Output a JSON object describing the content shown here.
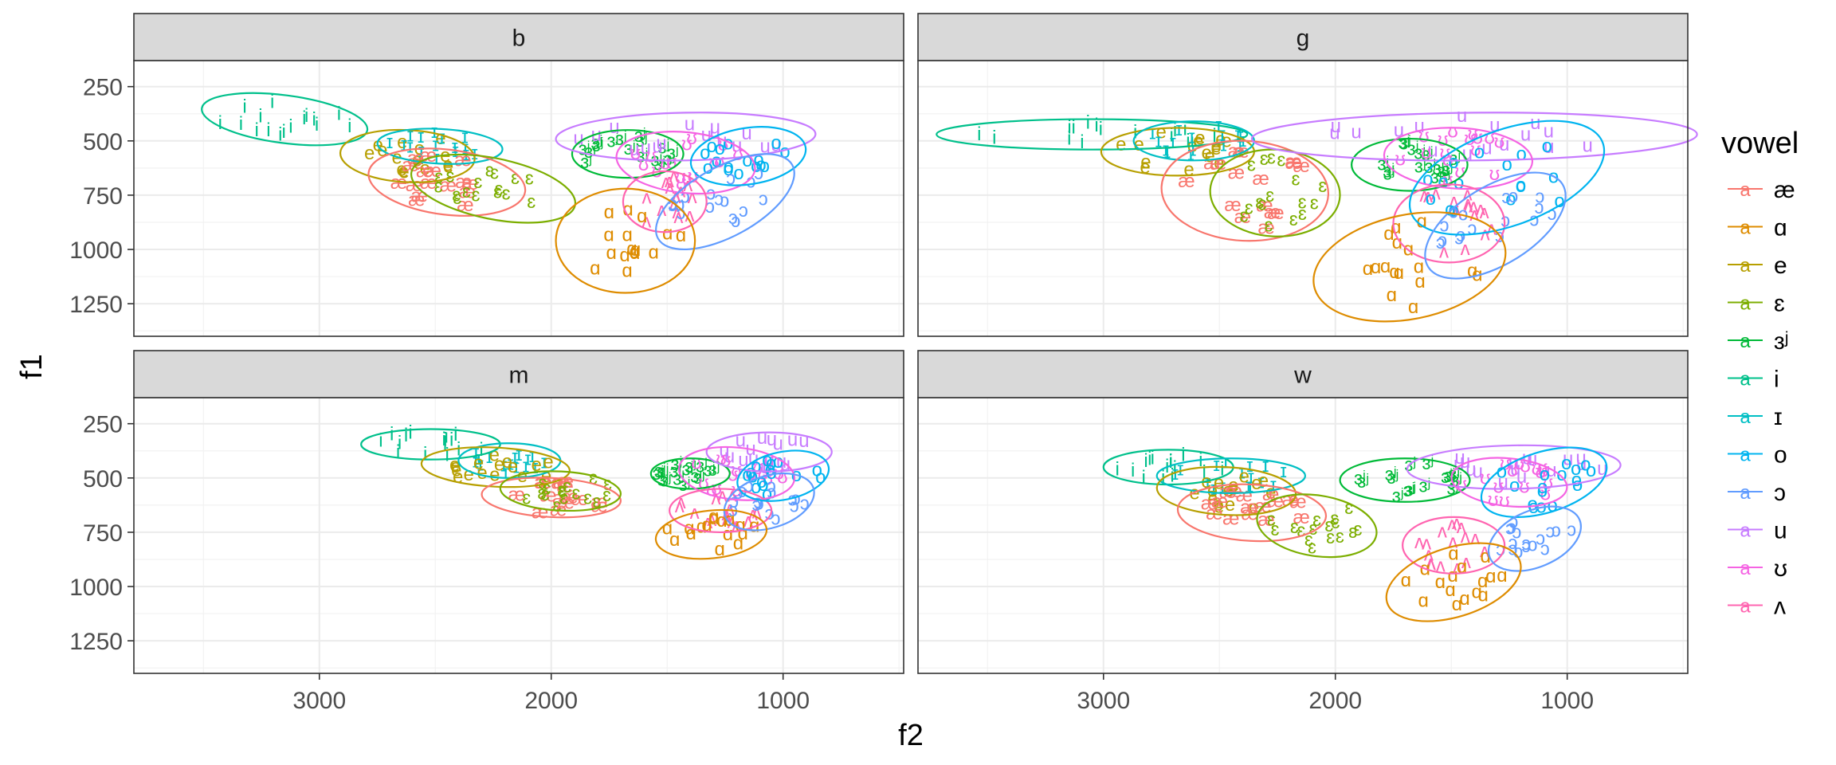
{
  "chart_data": {
    "type": "scatter",
    "xlabel": "f2",
    "ylabel": "f1",
    "x_axis": {
      "reversed": true,
      "lim": [
        3800,
        480
      ],
      "ticks": [
        3000,
        2000,
        1000
      ],
      "tick_labels": [
        "3000",
        "2000",
        "1000"
      ]
    },
    "y_axis": {
      "reversed": true,
      "lim": [
        130,
        1400
      ],
      "ticks": [
        250,
        500,
        750,
        1000,
        1250
      ],
      "tick_labels": [
        "250",
        "500",
        "750",
        "1000",
        "1250"
      ]
    },
    "grid": true,
    "legend": {
      "title": "vowel",
      "position": "right",
      "key_glyph": "a"
    },
    "vowels": [
      {
        "symbol": "æ",
        "color": "#F8766D"
      },
      {
        "symbol": "ɑ",
        "color": "#DE8C00"
      },
      {
        "symbol": "e",
        "color": "#B79F00"
      },
      {
        "symbol": "ɛ",
        "color": "#7CAE00"
      },
      {
        "symbol": "ɜʲ",
        "color": "#00BA38"
      },
      {
        "symbol": "i",
        "color": "#00C08B"
      },
      {
        "symbol": "ɪ",
        "color": "#00BFC4"
      },
      {
        "symbol": "o",
        "color": "#00B4F0"
      },
      {
        "symbol": "ɔ",
        "color": "#619CFF"
      },
      {
        "symbol": "u",
        "color": "#C77CFF"
      },
      {
        "symbol": "ʊ",
        "color": "#F564E3"
      },
      {
        "symbol": "ʌ",
        "color": "#FF64B0"
      }
    ],
    "facets": [
      {
        "label": "b",
        "ellipses": [
          {
            "vowel": "i",
            "cx": 3150,
            "cy": 400,
            "rx": 360,
            "ry": 110,
            "tilt": 0.13
          },
          {
            "vowel": "e",
            "cx": 2620,
            "cy": 570,
            "rx": 290,
            "ry": 120,
            "tilt": 0.05
          },
          {
            "vowel": "ɪ",
            "cx": 2480,
            "cy": 525,
            "rx": 270,
            "ry": 80,
            "tilt": 0.05
          },
          {
            "vowel": "æ",
            "cx": 2450,
            "cy": 690,
            "rx": 340,
            "ry": 150,
            "tilt": 0.12
          },
          {
            "vowel": "ɛ",
            "cx": 2250,
            "cy": 720,
            "rx": 360,
            "ry": 140,
            "tilt": 0.2
          },
          {
            "vowel": "ɜʲ",
            "cx": 1670,
            "cy": 560,
            "rx": 240,
            "ry": 110,
            "tilt": 0.0
          },
          {
            "vowel": "u",
            "cx": 1420,
            "cy": 480,
            "rx": 560,
            "ry": 110,
            "tilt": -0.02
          },
          {
            "vowel": "ʊ",
            "cx": 1420,
            "cy": 600,
            "rx": 300,
            "ry": 140,
            "tilt": 0.1
          },
          {
            "vowel": "ʌ",
            "cx": 1510,
            "cy": 780,
            "rx": 180,
            "ry": 140,
            "tilt": 0.0
          },
          {
            "vowel": "o",
            "cx": 1150,
            "cy": 570,
            "rx": 250,
            "ry": 130,
            "tilt": -0.15
          },
          {
            "vowel": "ɔ",
            "cx": 1250,
            "cy": 780,
            "rx": 330,
            "ry": 160,
            "tilt": -0.5
          },
          {
            "vowel": "ɑ",
            "cx": 1680,
            "cy": 960,
            "rx": 300,
            "ry": 240,
            "tilt": 0.0
          }
        ]
      },
      {
        "label": "g",
        "ellipses": [
          {
            "vowel": "i",
            "cx": 3050,
            "cy": 470,
            "rx": 670,
            "ry": 70,
            "tilt": 0.0
          },
          {
            "vowel": "e",
            "cx": 2680,
            "cy": 550,
            "rx": 330,
            "ry": 110,
            "tilt": 0.0
          },
          {
            "vowel": "ɪ",
            "cx": 2610,
            "cy": 500,
            "rx": 260,
            "ry": 90,
            "tilt": 0.0
          },
          {
            "vowel": "æ",
            "cx": 2390,
            "cy": 730,
            "rx": 360,
            "ry": 230,
            "tilt": 0.05
          },
          {
            "vowel": "ɛ",
            "cx": 2260,
            "cy": 740,
            "rx": 280,
            "ry": 200,
            "tilt": 0.05
          },
          {
            "vowel": "ɜʲ",
            "cx": 1680,
            "cy": 610,
            "rx": 250,
            "ry": 120,
            "tilt": 0.0
          },
          {
            "vowel": "u",
            "cx": 1400,
            "cy": 480,
            "rx": 960,
            "ry": 110,
            "tilt": -0.01
          },
          {
            "vowel": "ʊ",
            "cx": 1470,
            "cy": 580,
            "rx": 320,
            "ry": 140,
            "tilt": 0.05
          },
          {
            "vowel": "ʌ",
            "cx": 1510,
            "cy": 880,
            "rx": 240,
            "ry": 180,
            "tilt": 0.0
          },
          {
            "vowel": "o",
            "cx": 1260,
            "cy": 670,
            "rx": 440,
            "ry": 220,
            "tilt": -0.35
          },
          {
            "vowel": "ɔ",
            "cx": 1310,
            "cy": 890,
            "rx": 340,
            "ry": 180,
            "tilt": -0.55
          },
          {
            "vowel": "ɑ",
            "cx": 1680,
            "cy": 1080,
            "rx": 420,
            "ry": 240,
            "tilt": -0.2
          }
        ]
      },
      {
        "label": "m",
        "ellipses": [
          {
            "vowel": "i",
            "cx": 2520,
            "cy": 345,
            "rx": 300,
            "ry": 70,
            "tilt": 0.0
          },
          {
            "vowel": "ɪ",
            "cx": 2180,
            "cy": 420,
            "rx": 220,
            "ry": 80,
            "tilt": 0.0
          },
          {
            "vowel": "e",
            "cx": 2240,
            "cy": 450,
            "rx": 320,
            "ry": 90,
            "tilt": 0.05
          },
          {
            "vowel": "æ",
            "cx": 2000,
            "cy": 590,
            "rx": 300,
            "ry": 90,
            "tilt": 0.05
          },
          {
            "vowel": "ɛ",
            "cx": 1960,
            "cy": 560,
            "rx": 260,
            "ry": 90,
            "tilt": 0.05
          },
          {
            "vowel": "ɜʲ",
            "cx": 1400,
            "cy": 480,
            "rx": 170,
            "ry": 70,
            "tilt": 0.0
          },
          {
            "vowel": "u",
            "cx": 1060,
            "cy": 380,
            "rx": 270,
            "ry": 90,
            "tilt": 0.0
          },
          {
            "vowel": "ʊ",
            "cx": 1200,
            "cy": 480,
            "rx": 250,
            "ry": 120,
            "tilt": 0.1
          },
          {
            "vowel": "ʌ",
            "cx": 1270,
            "cy": 650,
            "rx": 220,
            "ry": 100,
            "tilt": 0.0
          },
          {
            "vowel": "o",
            "cx": 1000,
            "cy": 490,
            "rx": 200,
            "ry": 110,
            "tilt": -0.2
          },
          {
            "vowel": "ɔ",
            "cx": 1060,
            "cy": 610,
            "rx": 200,
            "ry": 120,
            "tilt": -0.3
          },
          {
            "vowel": "ɑ",
            "cx": 1310,
            "cy": 760,
            "rx": 240,
            "ry": 110,
            "tilt": -0.1
          }
        ]
      },
      {
        "label": "w",
        "ellipses": [
          {
            "vowel": "i",
            "cx": 2720,
            "cy": 450,
            "rx": 280,
            "ry": 80,
            "tilt": 0.0
          },
          {
            "vowel": "ɪ",
            "cx": 2450,
            "cy": 490,
            "rx": 320,
            "ry": 80,
            "tilt": 0.0
          },
          {
            "vowel": "e",
            "cx": 2470,
            "cy": 560,
            "rx": 300,
            "ry": 110,
            "tilt": 0.05
          },
          {
            "vowel": "æ",
            "cx": 2360,
            "cy": 660,
            "rx": 320,
            "ry": 130,
            "tilt": 0.05
          },
          {
            "vowel": "ɛ",
            "cx": 2080,
            "cy": 720,
            "rx": 260,
            "ry": 140,
            "tilt": 0.15
          },
          {
            "vowel": "ɜʲ",
            "cx": 1700,
            "cy": 510,
            "rx": 280,
            "ry": 100,
            "tilt": 0.0
          },
          {
            "vowel": "u",
            "cx": 1230,
            "cy": 450,
            "rx": 460,
            "ry": 100,
            "tilt": -0.02
          },
          {
            "vowel": "ʊ",
            "cx": 1250,
            "cy": 520,
            "rx": 250,
            "ry": 110,
            "tilt": 0.1
          },
          {
            "vowel": "ʌ",
            "cx": 1490,
            "cy": 810,
            "rx": 220,
            "ry": 130,
            "tilt": 0.0
          },
          {
            "vowel": "o",
            "cx": 1100,
            "cy": 520,
            "rx": 280,
            "ry": 140,
            "tilt": -0.3
          },
          {
            "vowel": "ɔ",
            "cx": 1140,
            "cy": 780,
            "rx": 210,
            "ry": 130,
            "tilt": -0.4
          },
          {
            "vowel": "ɑ",
            "cx": 1490,
            "cy": 980,
            "rx": 300,
            "ry": 160,
            "tilt": -0.3
          }
        ]
      }
    ]
  }
}
